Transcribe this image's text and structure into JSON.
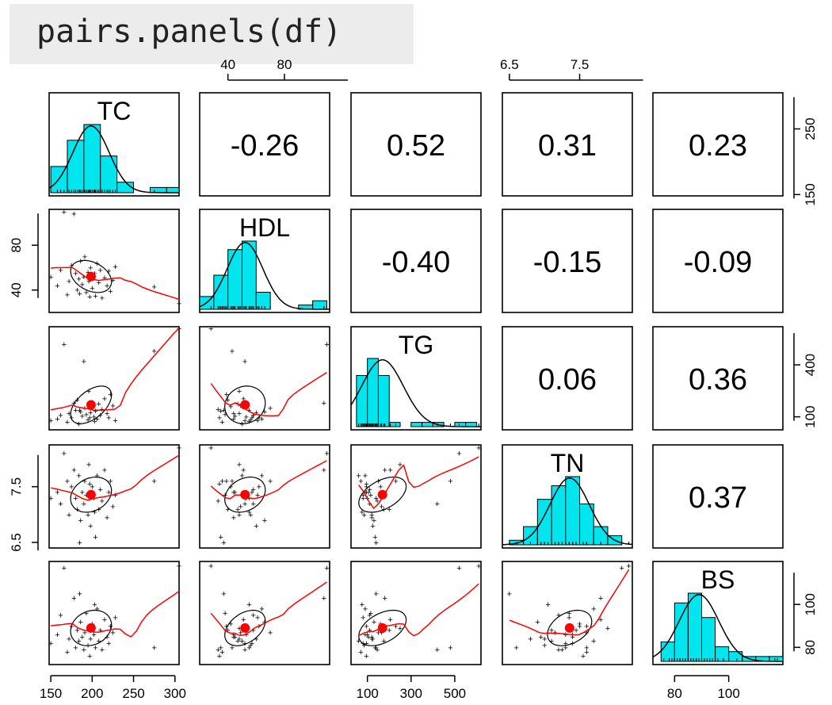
{
  "code": {
    "text": "pairs.panels(df)"
  },
  "colors": {
    "hist_fill": "#00e5ee",
    "smooth": "#ff0000",
    "ellipse": "#000000",
    "points": "#000000",
    "center": "#ff0000"
  },
  "chart_data": {
    "type": "scatter-matrix",
    "variables": [
      "TC",
      "HDL",
      "TG",
      "TN",
      "BS"
    ],
    "correlations": [
      {
        "row": 0,
        "col": 1,
        "value": "-0.26"
      },
      {
        "row": 0,
        "col": 2,
        "value": "0.52"
      },
      {
        "row": 0,
        "col": 3,
        "value": "0.31"
      },
      {
        "row": 0,
        "col": 4,
        "value": "0.23"
      },
      {
        "row": 1,
        "col": 2,
        "value": "-0.40"
      },
      {
        "row": 1,
        "col": 3,
        "value": "-0.15"
      },
      {
        "row": 1,
        "col": 4,
        "value": "-0.09"
      },
      {
        "row": 2,
        "col": 3,
        "value": "0.06"
      },
      {
        "row": 2,
        "col": 4,
        "value": "0.36"
      },
      {
        "row": 3,
        "col": 4,
        "value": "0.37"
      }
    ],
    "ranges": {
      "TC": [
        148,
        305
      ],
      "HDL": [
        20,
        112
      ],
      "TG": [
        25,
        620
      ],
      "TN": [
        6.4,
        8.25
      ],
      "BS": [
        72,
        120
      ]
    },
    "axes": {
      "top": [
        {
          "col": 1,
          "ticks": [
            "40",
            "80"
          ]
        },
        {
          "col": 3,
          "ticks": [
            "6.5",
            "7.5"
          ]
        }
      ],
      "bottom": [
        {
          "col": 0,
          "ticks": [
            "150",
            "200",
            "250",
            "300"
          ]
        },
        {
          "col": 2,
          "ticks": [
            "100",
            "300",
            "500"
          ]
        },
        {
          "col": 4,
          "ticks": [
            "80",
            "100"
          ]
        }
      ],
      "left": [
        {
          "row": 1,
          "ticks": [
            "40",
            "80"
          ]
        },
        {
          "row": 3,
          "ticks": [
            "6.5",
            "7.5"
          ]
        }
      ],
      "right": [
        {
          "row": 0,
          "ticks": [
            "150",
            "250"
          ]
        },
        {
          "row": 2,
          "ticks": [
            "100",
            "400"
          ]
        },
        {
          "row": 4,
          "ticks": [
            "80",
            "100"
          ]
        }
      ]
    },
    "histograms": {
      "TC": {
        "edges": [
          150,
          170,
          190,
          210,
          230,
          250,
          270,
          290,
          310
        ],
        "counts": [
          5,
          10,
          13,
          7,
          2,
          0,
          1,
          1
        ]
      },
      "HDL": {
        "edges": [
          20,
          30,
          40,
          50,
          60,
          70,
          80,
          90,
          100,
          110
        ],
        "counts": [
          3,
          8,
          14,
          16,
          4,
          0,
          0,
          1,
          2
        ]
      },
      "TG": {
        "edges": [
          50,
          100,
          150,
          200,
          250,
          300,
          350,
          400,
          450,
          500,
          550,
          600
        ],
        "counts": [
          12,
          16,
          12,
          1,
          0,
          1,
          1,
          1,
          0,
          1,
          1
        ]
      },
      "TN": {
        "edges": [
          6.5,
          6.7,
          6.9,
          7.1,
          7.3,
          7.5,
          7.7,
          7.9,
          8.1
        ],
        "counts": [
          1,
          4,
          10,
          13,
          15,
          9,
          4,
          2
        ]
      },
      "BS": {
        "edges": [
          75,
          80,
          85,
          90,
          95,
          100,
          105,
          110,
          115,
          120
        ],
        "counts": [
          4,
          12,
          14,
          9,
          3,
          2,
          1,
          1,
          1
        ]
      }
    },
    "observations": [
      {
        "TC": 150,
        "HDL": 52,
        "TG": 80,
        "TN": 7.3,
        "BS": 82
      },
      {
        "TC": 158,
        "HDL": 44,
        "TG": 90,
        "TN": 7.4,
        "BS": 86
      },
      {
        "TC": 162,
        "HDL": 58,
        "TG": 110,
        "TN": 7.2,
        "BS": 95
      },
      {
        "TC": 166,
        "HDL": 110,
        "TG": 520,
        "TN": 8.1,
        "BS": 117
      },
      {
        "TC": 170,
        "HDL": 36,
        "TG": 70,
        "TN": 7.6,
        "BS": 78
      },
      {
        "TC": 172,
        "HDL": 48,
        "TG": 120,
        "TN": 7.0,
        "BS": 84
      },
      {
        "TC": 175,
        "HDL": 62,
        "TG": 95,
        "TN": 7.5,
        "BS": 90
      },
      {
        "TC": 178,
        "HDL": 108,
        "TG": 180,
        "TN": 7.8,
        "BS": 103
      },
      {
        "TC": 180,
        "HDL": 55,
        "TG": 140,
        "TN": 7.3,
        "BS": 80
      },
      {
        "TC": 182,
        "HDL": 40,
        "TG": 200,
        "TN": 7.1,
        "BS": 88
      },
      {
        "TC": 184,
        "HDL": 50,
        "TG": 60,
        "TN": 7.7,
        "BS": 83
      },
      {
        "TC": 186,
        "HDL": 66,
        "TG": 130,
        "TN": 6.9,
        "BS": 92
      },
      {
        "TC": 188,
        "HDL": 45,
        "TG": 105,
        "TN": 7.4,
        "BS": 85
      },
      {
        "TC": 190,
        "HDL": 52,
        "TG": 420,
        "TN": 7.2,
        "BS": 79
      },
      {
        "TC": 191,
        "HDL": 70,
        "TG": 150,
        "TN": 7.6,
        "BS": 87
      },
      {
        "TC": 193,
        "HDL": 38,
        "TG": 115,
        "TN": 7.35,
        "BS": 96
      },
      {
        "TC": 195,
        "HDL": 56,
        "TG": 85,
        "TN": 7.0,
        "BS": 81
      },
      {
        "TC": 196,
        "HDL": 48,
        "TG": 250,
        "TN": 7.9,
        "BS": 89
      },
      {
        "TC": 198,
        "HDL": 60,
        "TG": 125,
        "TN": 6.8,
        "BS": 84
      },
      {
        "TC": 200,
        "HDL": 42,
        "TG": 160,
        "TN": 7.5,
        "BS": 91
      },
      {
        "TC": 202,
        "HDL": 53,
        "TG": 100,
        "TN": 7.3,
        "BS": 86
      },
      {
        "TC": 204,
        "HDL": 35,
        "TG": 135,
        "TN": 6.6,
        "BS": 80
      },
      {
        "TC": 206,
        "HDL": 64,
        "TG": 90,
        "TN": 7.7,
        "BS": 98
      },
      {
        "TC": 208,
        "HDL": 47,
        "TG": 175,
        "TN": 7.1,
        "BS": 83
      },
      {
        "TC": 210,
        "HDL": 58,
        "TG": 110,
        "TN": 7.45,
        "BS": 88
      },
      {
        "TC": 212,
        "HDL": 33,
        "TG": 145,
        "TN": 7.25,
        "BS": 79
      },
      {
        "TC": 215,
        "HDL": 51,
        "TG": 205,
        "TN": 7.8,
        "BS": 93
      },
      {
        "TC": 218,
        "HDL": 44,
        "TG": 120,
        "TN": 6.95,
        "BS": 85
      },
      {
        "TC": 220,
        "HDL": 57,
        "TG": 95,
        "TN": 7.4,
        "BS": 82
      },
      {
        "TC": 222,
        "HDL": 39,
        "TG": 230,
        "TN": 7.6,
        "BS": 90
      },
      {
        "TC": 225,
        "HDL": 49,
        "TG": 165,
        "TN": 7.15,
        "BS": 87
      },
      {
        "TC": 228,
        "HDL": 61,
        "TG": 80,
        "TN": 7.35,
        "BS": 94
      },
      {
        "TC": 185,
        "HDL": 37,
        "TG": 140,
        "TN": 6.5,
        "BS": 105
      },
      {
        "TC": 197,
        "HDL": 34,
        "TG": 95,
        "TN": 7.55,
        "BS": 76
      },
      {
        "TC": 203,
        "HDL": 55,
        "TG": 75,
        "TN": 7.05,
        "BS": 100
      },
      {
        "TC": 275,
        "HDL": 43,
        "TG": 480,
        "TN": 7.6,
        "BS": 80
      },
      {
        "TC": 305,
        "HDL": 28,
        "TG": 610,
        "TN": 8.2,
        "BS": 118
      }
    ]
  }
}
